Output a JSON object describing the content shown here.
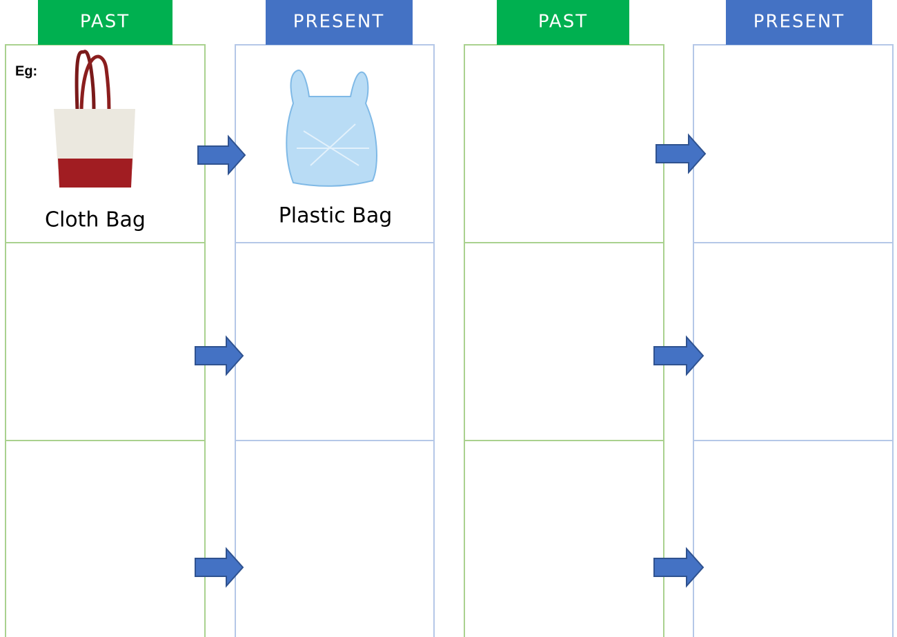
{
  "columns": [
    {
      "header": "PAST"
    },
    {
      "header": "PRESENT"
    },
    {
      "header": "PAST"
    },
    {
      "header": "PRESENT"
    }
  ],
  "example": {
    "prefix": "Eg:",
    "past_item": "Cloth Bag",
    "present_item": "Plastic Bag"
  }
}
